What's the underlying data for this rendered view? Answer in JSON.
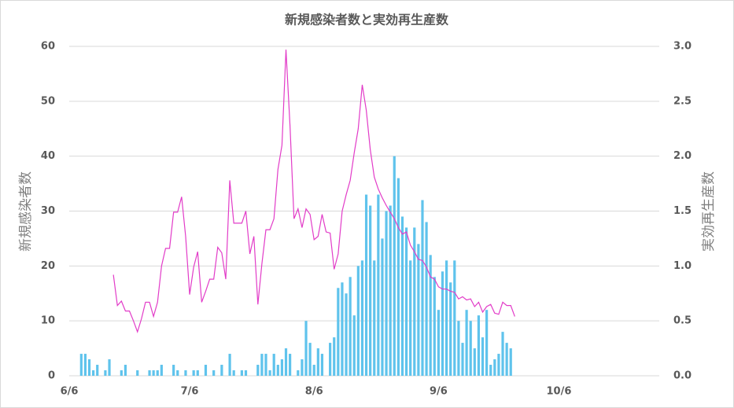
{
  "chart_data": {
    "type": "bar",
    "title": "新規感染者数と実効再生産数",
    "y_label": "新規感染者数",
    "y2_label": "実効再生産数",
    "x": [
      0,
      1,
      2,
      3,
      4,
      5,
      6,
      7,
      8,
      9,
      10,
      11,
      12,
      13,
      14,
      15,
      16,
      17,
      18,
      19,
      20,
      21,
      22,
      23,
      24,
      25,
      26,
      27,
      28,
      29,
      30,
      31,
      32,
      33,
      34,
      35,
      36,
      37,
      38,
      39,
      40,
      41,
      42,
      43,
      44,
      45,
      46,
      47,
      48,
      49,
      50,
      51,
      52,
      53,
      54,
      55,
      56,
      57,
      58,
      59,
      60,
      61,
      62,
      63,
      64,
      65,
      66,
      67,
      68,
      69,
      70,
      71,
      72,
      73,
      74,
      75,
      76,
      77,
      78,
      79,
      80,
      81,
      82,
      83,
      84,
      85,
      86,
      87,
      88,
      89,
      90,
      91,
      92,
      93,
      94,
      95,
      96,
      97,
      98,
      99,
      100,
      101,
      102,
      103,
      104,
      105,
      106,
      107,
      108,
      109,
      110,
      111
    ],
    "xlim": [
      0,
      147
    ],
    "xticks": [
      {
        "value": 0,
        "label": "6/6"
      },
      {
        "value": 30,
        "label": "7/6"
      },
      {
        "value": 61,
        "label": "8/6"
      },
      {
        "value": 92,
        "label": "9/6"
      },
      {
        "value": 122,
        "label": "10/6"
      }
    ],
    "ylim": [
      0,
      60
    ],
    "yticks": [
      0,
      10,
      20,
      30,
      40,
      50,
      60
    ],
    "y2lim": [
      0,
      3
    ],
    "y2ticks": [
      {
        "value": 0,
        "label": "0.0"
      },
      0.5,
      {
        "value": 1,
        "label": "1.0"
      },
      1.5,
      {
        "value": 2,
        "label": "2.0"
      },
      2.5,
      {
        "value": 3,
        "label": "3.0"
      }
    ],
    "grid": true,
    "series": [
      {
        "type": "bar",
        "color": "#5fc3ec",
        "values": [
          0,
          0,
          0,
          4,
          4,
          3,
          1,
          2,
          0,
          1,
          3,
          0,
          0,
          1,
          2,
          0,
          0,
          1,
          0,
          0,
          1,
          1,
          1,
          2,
          0,
          0,
          2,
          1,
          0,
          1,
          0,
          1,
          1,
          0,
          2,
          0,
          1,
          0,
          2,
          0,
          4,
          1,
          0,
          1,
          1,
          0,
          0,
          2,
          4,
          4,
          1,
          4,
          2,
          3,
          5,
          4,
          0,
          1,
          3,
          10,
          6,
          2,
          5,
          4,
          0,
          6,
          7,
          16,
          17,
          15,
          18,
          11,
          20,
          21,
          33,
          31,
          21,
          33,
          25,
          30,
          31,
          40,
          36,
          29,
          27,
          21,
          27,
          24,
          32,
          28,
          22,
          18,
          12,
          19,
          21,
          17,
          21,
          10,
          6,
          12,
          10,
          5,
          11,
          7,
          12,
          2,
          3,
          4,
          8,
          6,
          5,
          0
        ]
      },
      {
        "type": "line",
        "axis": "y2",
        "color": "#e23cc8",
        "values": [
          null,
          null,
          null,
          null,
          null,
          null,
          null,
          null,
          null,
          null,
          null,
          0.92,
          0.64,
          0.68,
          0.59,
          0.59,
          0.5,
          0.4,
          0.52,
          0.67,
          0.67,
          0.54,
          0.67,
          1.0,
          1.16,
          1.16,
          1.49,
          1.49,
          1.63,
          1.27,
          0.74,
          0.99,
          1.13,
          0.67,
          0.77,
          0.88,
          0.88,
          1.17,
          1.12,
          0.88,
          1.78,
          1.39,
          1.39,
          1.39,
          1.5,
          1.11,
          1.27,
          0.65,
          1.02,
          1.33,
          1.33,
          1.43,
          1.88,
          2.1,
          2.97,
          2.28,
          1.43,
          1.52,
          1.35,
          1.52,
          1.47,
          1.24,
          1.27,
          1.47,
          1.31,
          1.3,
          0.97,
          1.11,
          1.5,
          1.65,
          1.78,
          2.03,
          2.25,
          2.65,
          2.42,
          2.06,
          1.81,
          1.7,
          1.62,
          1.55,
          1.49,
          1.43,
          1.35,
          1.29,
          1.31,
          1.19,
          1.13,
          1.06,
          1.05,
          0.99,
          0.9,
          0.88,
          0.81,
          0.79,
          0.79,
          0.77,
          0.76,
          0.7,
          0.72,
          0.69,
          0.7,
          0.63,
          0.67,
          0.58,
          0.63,
          0.65,
          0.57,
          0.56,
          0.67,
          0.64,
          0.64,
          0.54
        ]
      }
    ]
  }
}
